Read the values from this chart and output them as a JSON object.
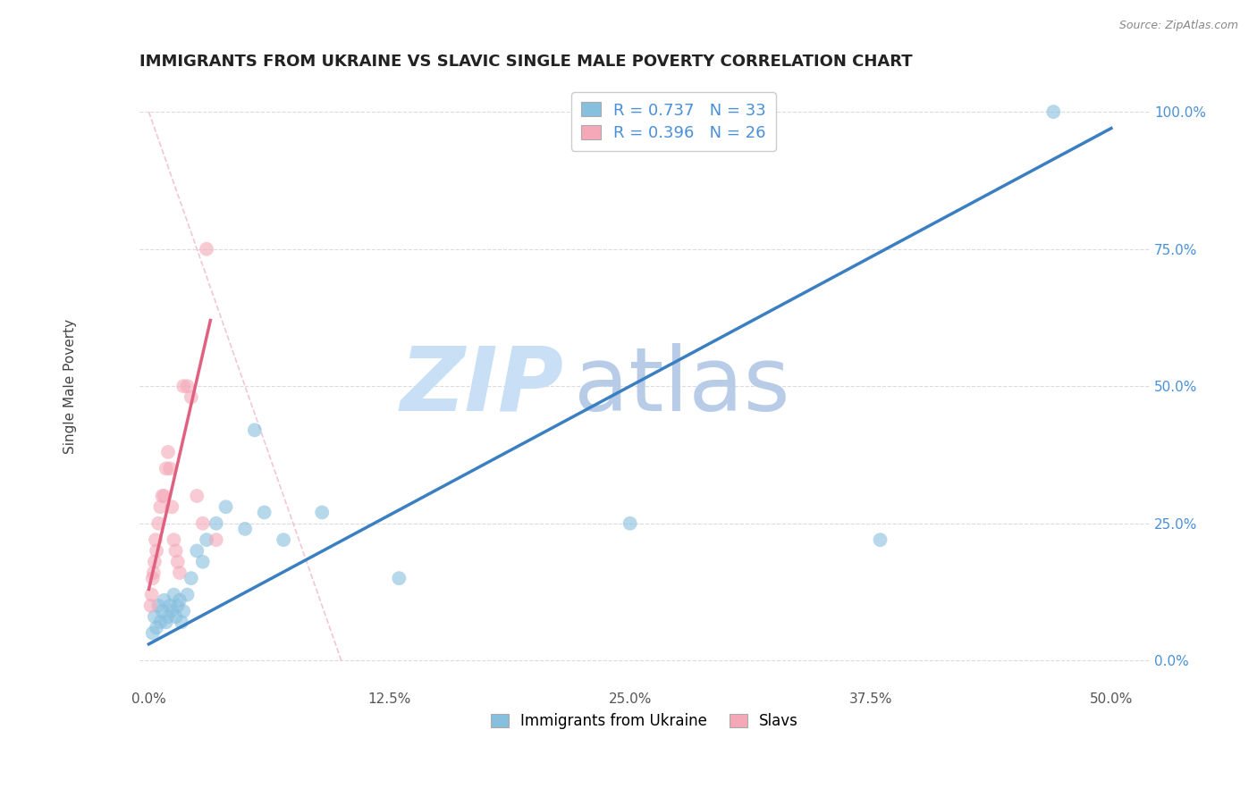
{
  "title": "IMMIGRANTS FROM UKRAINE VS SLAVIC SINGLE MALE POVERTY CORRELATION CHART",
  "source": "Source: ZipAtlas.com",
  "xlabel_vals": [
    0.0,
    12.5,
    25.0,
    37.5,
    50.0
  ],
  "ylabel": "Single Male Poverty",
  "ylabel_vals": [
    0.0,
    25.0,
    50.0,
    75.0,
    100.0
  ],
  "xlim": [
    -0.5,
    52.0
  ],
  "ylim": [
    -5.0,
    105.0
  ],
  "legend_bottom": [
    "Immigrants from Ukraine",
    "Slavs"
  ],
  "blue_scatter_x": [
    0.2,
    0.3,
    0.4,
    0.5,
    0.6,
    0.7,
    0.8,
    0.9,
    1.0,
    1.1,
    1.2,
    1.3,
    1.4,
    1.5,
    1.6,
    1.7,
    1.8,
    2.0,
    2.2,
    2.5,
    2.8,
    3.0,
    3.5,
    4.0,
    5.0,
    6.0,
    7.0,
    9.0,
    13.0,
    25.0,
    38.0,
    47.0,
    5.5
  ],
  "blue_scatter_y": [
    5.0,
    8.0,
    6.0,
    10.0,
    7.0,
    9.0,
    11.0,
    7.0,
    8.0,
    10.0,
    9.0,
    12.0,
    8.0,
    10.0,
    11.0,
    7.0,
    9.0,
    12.0,
    15.0,
    20.0,
    18.0,
    22.0,
    25.0,
    28.0,
    24.0,
    27.0,
    22.0,
    27.0,
    15.0,
    25.0,
    22.0,
    100.0,
    42.0
  ],
  "pink_scatter_x": [
    0.1,
    0.2,
    0.3,
    0.4,
    0.5,
    0.6,
    0.7,
    0.8,
    0.9,
    1.0,
    1.1,
    1.2,
    1.3,
    1.4,
    1.5,
    1.6,
    1.8,
    2.0,
    2.2,
    2.5,
    3.0,
    3.5,
    0.15,
    0.25,
    0.35,
    2.8
  ],
  "pink_scatter_y": [
    10.0,
    15.0,
    18.0,
    20.0,
    25.0,
    28.0,
    30.0,
    30.0,
    35.0,
    38.0,
    35.0,
    28.0,
    22.0,
    20.0,
    18.0,
    16.0,
    50.0,
    50.0,
    48.0,
    30.0,
    75.0,
    22.0,
    12.0,
    16.0,
    22.0,
    25.0
  ],
  "blue_line_x": [
    0.0,
    50.0
  ],
  "blue_line_y": [
    3.0,
    97.0
  ],
  "pink_line_x": [
    0.0,
    3.2
  ],
  "pink_line_y": [
    13.0,
    62.0
  ],
  "diag_line_x": [
    0.0,
    10.0
  ],
  "diag_line_y": [
    100.0,
    0.0
  ],
  "watermark_zip": "ZIP",
  "watermark_atlas": "atlas",
  "watermark_color_zip": "#c8dff5",
  "watermark_color_atlas": "#b8cce8",
  "bg_color": "#ffffff",
  "blue_color": "#87bfdf",
  "pink_color": "#f4a8b8",
  "blue_line_color": "#3a7fc1",
  "pink_line_color": "#e06080",
  "grid_color": "#cccccc",
  "diag_color": "#f0b8c8",
  "ylabel_color": "#4a90d9",
  "legend_text_color": "#4a90d9"
}
